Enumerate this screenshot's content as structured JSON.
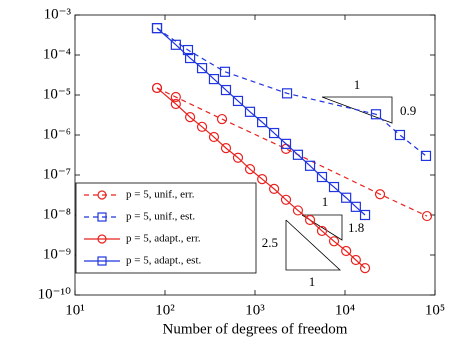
{
  "chart_data": {
    "type": "line",
    "xlabel": "Number of degrees of freedom",
    "xscale": "log",
    "yscale": "log",
    "xlim": [
      10,
      100000
    ],
    "ylim": [
      1e-10,
      0.001
    ],
    "xticks": [
      {
        "value": 10,
        "label": "10¹"
      },
      {
        "value": 100,
        "label": "10²"
      },
      {
        "value": 1000,
        "label": "10³"
      },
      {
        "value": 10000,
        "label": "10⁴"
      },
      {
        "value": 100000,
        "label": "10⁵"
      }
    ],
    "yticks": [
      {
        "value": 1e-10,
        "label": "10⁻¹⁰"
      },
      {
        "value": 1e-09,
        "label": "10⁻⁹"
      },
      {
        "value": 1e-08,
        "label": "10⁻⁸"
      },
      {
        "value": 1e-07,
        "label": "10⁻⁷"
      },
      {
        "value": 1e-06,
        "label": "10⁻⁶"
      },
      {
        "value": 1e-05,
        "label": "10⁻⁵"
      },
      {
        "value": 0.0001,
        "label": "10⁻⁴"
      },
      {
        "value": 0.001,
        "label": "10⁻³"
      }
    ],
    "legend": "lower left",
    "series": [
      {
        "name": "p = 5, unif., err.",
        "color": "#e8231f",
        "marker": "circle",
        "dashed": true,
        "x": [
          81.5,
          132,
          430,
          2210,
          24500,
          81500
        ],
        "values": [
          1.5e-05,
          8.9e-06,
          2.5e-06,
          4.5e-07,
          3.3e-08,
          9.4e-09
        ]
      },
      {
        "name": "p = 5, unif., est.",
        "color": "#1f35e0",
        "marker": "square",
        "dashed": true,
        "x": [
          81.5,
          180,
          464,
          2270,
          22100,
          40800,
          79400
        ],
        "values": [
          0.00047,
          0.000133,
          3.8e-05,
          1.1e-05,
          3.3e-06,
          1e-06,
          3e-07
        ]
      },
      {
        "name": "p = 5, adapt., err.",
        "color": "#e8231f",
        "marker": "circle",
        "dashed": false,
        "x": [
          81.5,
          132,
          190,
          258,
          350,
          476,
          647,
          880,
          1200,
          1630,
          2210,
          3000,
          4090,
          5550,
          7550,
          10300,
          13200,
          16700
        ],
        "values": [
          1.5e-05,
          5.96e-06,
          2.8e-06,
          1.6e-06,
          8.9e-07,
          4.7e-07,
          2.7e-07,
          1.4e-07,
          7.9e-08,
          4.5e-08,
          2.4e-08,
          1.3e-08,
          7.5e-09,
          4e-09,
          2.2e-09,
          1.26e-09,
          7.5e-10,
          4.7e-10
        ]
      },
      {
        "name": "p = 5, adapt., est.",
        "color": "#1f35e0",
        "marker": "square",
        "dashed": false,
        "x": [
          81.5,
          132,
          190,
          258,
          350,
          476,
          647,
          880,
          1200,
          1630,
          2210,
          3000,
          4090,
          5550,
          7550,
          10300,
          13200,
          16700
        ],
        "values": [
          0.00047,
          0.00018,
          8.4e-05,
          4.7e-05,
          2.5e-05,
          1.33e-05,
          7.1e-06,
          3.8e-06,
          2.1e-06,
          1.12e-06,
          6e-07,
          3.2e-07,
          1.7e-07,
          8.9e-08,
          5e-08,
          2.7e-08,
          1.6e-08,
          1e-08
        ]
      }
    ],
    "annotations": [
      "1",
      "0.9",
      "1",
      "1.8",
      "2.5",
      "1"
    ]
  }
}
